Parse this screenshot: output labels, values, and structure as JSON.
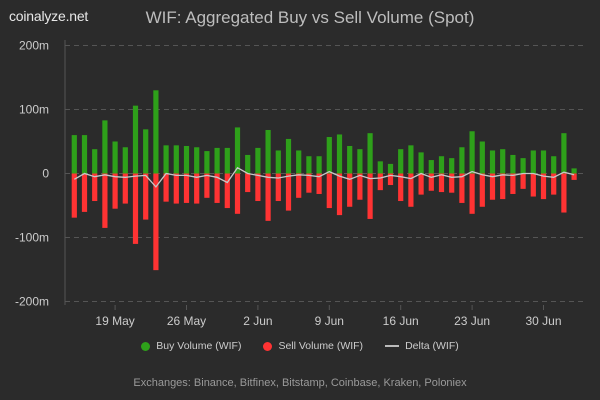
{
  "logo": "coinalyze.net",
  "chart_data": {
    "type": "bar",
    "title": "WIF: Aggregated Buy vs Sell Volume (Spot)",
    "colors": {
      "buy": "#2ea01a",
      "sell": "#ff3333",
      "delta": "#c8c8c8",
      "background": "#2b2b2b"
    },
    "x_start_date": "15 May",
    "x_tick_labels": [
      "19 May",
      "26 May",
      "2 Jun",
      "9 Jun",
      "16 Jun",
      "23 Jun",
      "30 Jun"
    ],
    "y_tick_labels": [
      "200m",
      "100m",
      "0",
      "-100m",
      "-200m"
    ],
    "ylim": [
      -200,
      200
    ],
    "y_unit": "m",
    "grid": true,
    "legend_position": "bottom",
    "series": [
      {
        "name": "Buy Volume (WIF)",
        "type": "bar",
        "values": [
          60,
          60,
          38,
          83,
          50,
          41,
          106,
          69,
          130,
          44,
          44,
          43,
          41,
          35,
          40,
          40,
          72,
          29,
          40,
          68,
          36,
          54,
          36,
          27,
          27,
          57,
          61,
          43,
          38,
          63,
          19,
          15,
          38,
          44,
          33,
          21,
          27,
          24,
          41,
          66,
          50,
          36,
          38,
          29,
          24,
          36,
          36,
          27,
          63,
          8
        ]
      },
      {
        "name": "Sell Volume (WIF)",
        "type": "bar",
        "values": [
          -69,
          -60,
          -43,
          -85,
          -55,
          -47,
          -110,
          -72,
          -151,
          -44,
          -47,
          -46,
          -47,
          -38,
          -46,
          -54,
          -63,
          -29,
          -43,
          -74,
          -43,
          -58,
          -38,
          -30,
          -32,
          -54,
          -65,
          -52,
          -41,
          -71,
          -26,
          -18,
          -43,
          -52,
          -33,
          -27,
          -29,
          -30,
          -46,
          -63,
          -52,
          -41,
          -40,
          -32,
          -24,
          -36,
          -40,
          -33,
          -61,
          -10
        ]
      },
      {
        "name": "Delta (WIF)",
        "type": "line",
        "values": [
          -9,
          0,
          -5,
          -2,
          -5,
          -6,
          -4,
          -3,
          -21,
          0,
          -3,
          -3,
          -6,
          -3,
          -6,
          -14,
          9,
          0,
          -3,
          -6,
          -7,
          -4,
          -2,
          -3,
          -5,
          3,
          -4,
          -9,
          -3,
          -8,
          -7,
          -3,
          -5,
          -8,
          0,
          -6,
          -2,
          -6,
          -5,
          3,
          -2,
          -5,
          -2,
          -3,
          0,
          0,
          -4,
          -6,
          2,
          -2
        ]
      }
    ]
  },
  "legend": {
    "buy": "Buy Volume (WIF)",
    "sell": "Sell Volume (WIF)",
    "delta": "Delta (WIF)"
  },
  "footer": "Exchanges: Binance, Bitfinex, Bitstamp, Coinbase, Kraken, Poloniex"
}
